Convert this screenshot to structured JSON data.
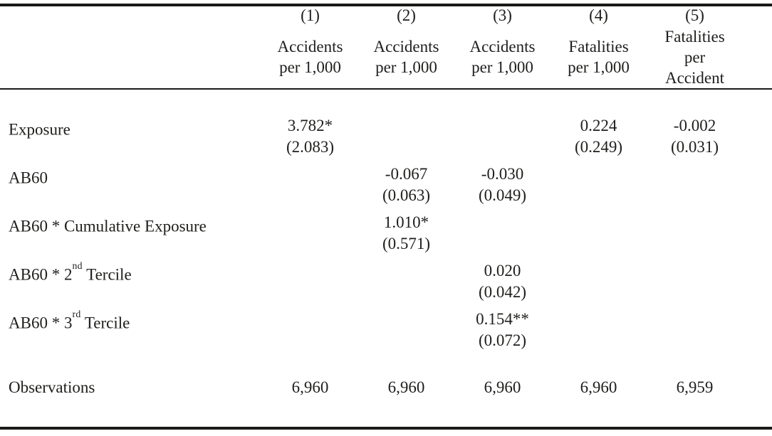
{
  "page": {
    "background": "#ffffff",
    "text_color": "#1e1e1c",
    "rule_color": "#1a1a18"
  },
  "table": {
    "columns": [
      {
        "number": "(1)",
        "title_lines": [
          "Accidents",
          "per 1,000"
        ]
      },
      {
        "number": "(2)",
        "title_lines": [
          "Accidents",
          "per 1,000"
        ]
      },
      {
        "number": "(3)",
        "title_lines": [
          "Accidents",
          "per 1,000"
        ]
      },
      {
        "number": "(4)",
        "title_lines": [
          "Fatalities",
          "per 1,000"
        ]
      },
      {
        "number": "(5)",
        "title_lines": [
          "Fatalities",
          "per",
          "Accident"
        ]
      }
    ],
    "rows": [
      {
        "label": {
          "pre": "Exposure",
          "sup": "",
          "post": ""
        },
        "cells": [
          {
            "est": "3.782*",
            "se": "(2.083)"
          },
          null,
          null,
          {
            "est": "0.224",
            "se": "(0.249)"
          },
          {
            "est": "-0.002",
            "se": "(0.031)"
          }
        ]
      },
      {
        "label": {
          "pre": "AB60",
          "sup": "",
          "post": ""
        },
        "cells": [
          null,
          {
            "est": "-0.067",
            "se": "(0.063)"
          },
          {
            "est": "-0.030",
            "se": "(0.049)"
          },
          null,
          null
        ]
      },
      {
        "label": {
          "pre": "AB60 * Cumulative Exposure",
          "sup": "",
          "post": ""
        },
        "cells": [
          null,
          {
            "est": "1.010*",
            "se": "(0.571)"
          },
          null,
          null,
          null
        ]
      },
      {
        "label": {
          "pre": "AB60 * 2",
          "sup": "nd",
          "post": " Tercile"
        },
        "cells": [
          null,
          null,
          {
            "est": "0.020",
            "se": "(0.042)"
          },
          null,
          null
        ]
      },
      {
        "label": {
          "pre": "AB60 * 3",
          "sup": "rd",
          "post": " Tercile"
        },
        "cells": [
          null,
          null,
          {
            "est": "0.154**",
            "se": "(0.072)"
          },
          null,
          null
        ]
      }
    ],
    "footer": {
      "label": "Observations",
      "values": [
        "6,960",
        "6,960",
        "6,960",
        "6,960",
        "6,959"
      ]
    }
  }
}
